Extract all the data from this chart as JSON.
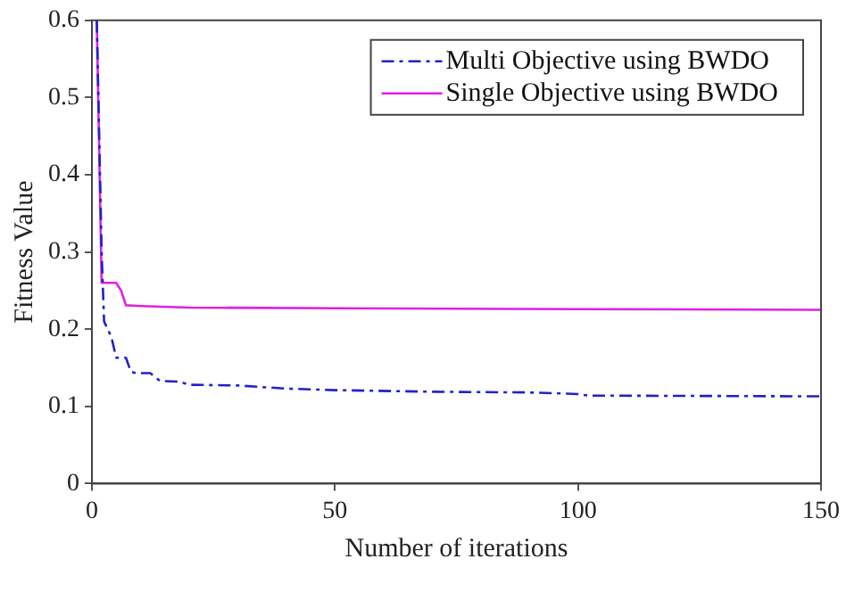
{
  "chart_data": {
    "type": "line",
    "xlabel": "Number of iterations",
    "ylabel": "Fitness Value",
    "xlim": [
      0,
      150
    ],
    "xticks": [
      0,
      50,
      100,
      150
    ],
    "ylim": [
      0,
      0.6
    ],
    "yticks": [
      0,
      0.1,
      0.2,
      0.3,
      0.4,
      0.5,
      0.6
    ],
    "grid": false,
    "legend": "top right",
    "marker": "none",
    "series": [
      {
        "name": "Multi Objective using BWDO",
        "color": "#2020d0",
        "line_style": "dashed",
        "x": [
          1,
          2,
          2.5,
          4,
          5,
          7,
          8,
          9,
          12,
          14,
          18,
          20,
          30,
          40,
          50,
          70,
          90,
          100,
          102,
          150
        ],
        "values": [
          0.6,
          0.3,
          0.21,
          0.19,
          0.163,
          0.163,
          0.145,
          0.143,
          0.143,
          0.133,
          0.132,
          0.128,
          0.127,
          0.123,
          0.121,
          0.119,
          0.118,
          0.116,
          0.114,
          0.113
        ]
      },
      {
        "name": "Single Objective using BWDO",
        "color": "#e020e0",
        "line_style": "solid",
        "x": [
          1,
          2,
          5,
          6,
          7,
          10,
          20,
          50,
          100,
          150
        ],
        "values": [
          0.6,
          0.26,
          0.26,
          0.25,
          0.231,
          0.23,
          0.228,
          0.227,
          0.226,
          0.225
        ]
      }
    ]
  }
}
